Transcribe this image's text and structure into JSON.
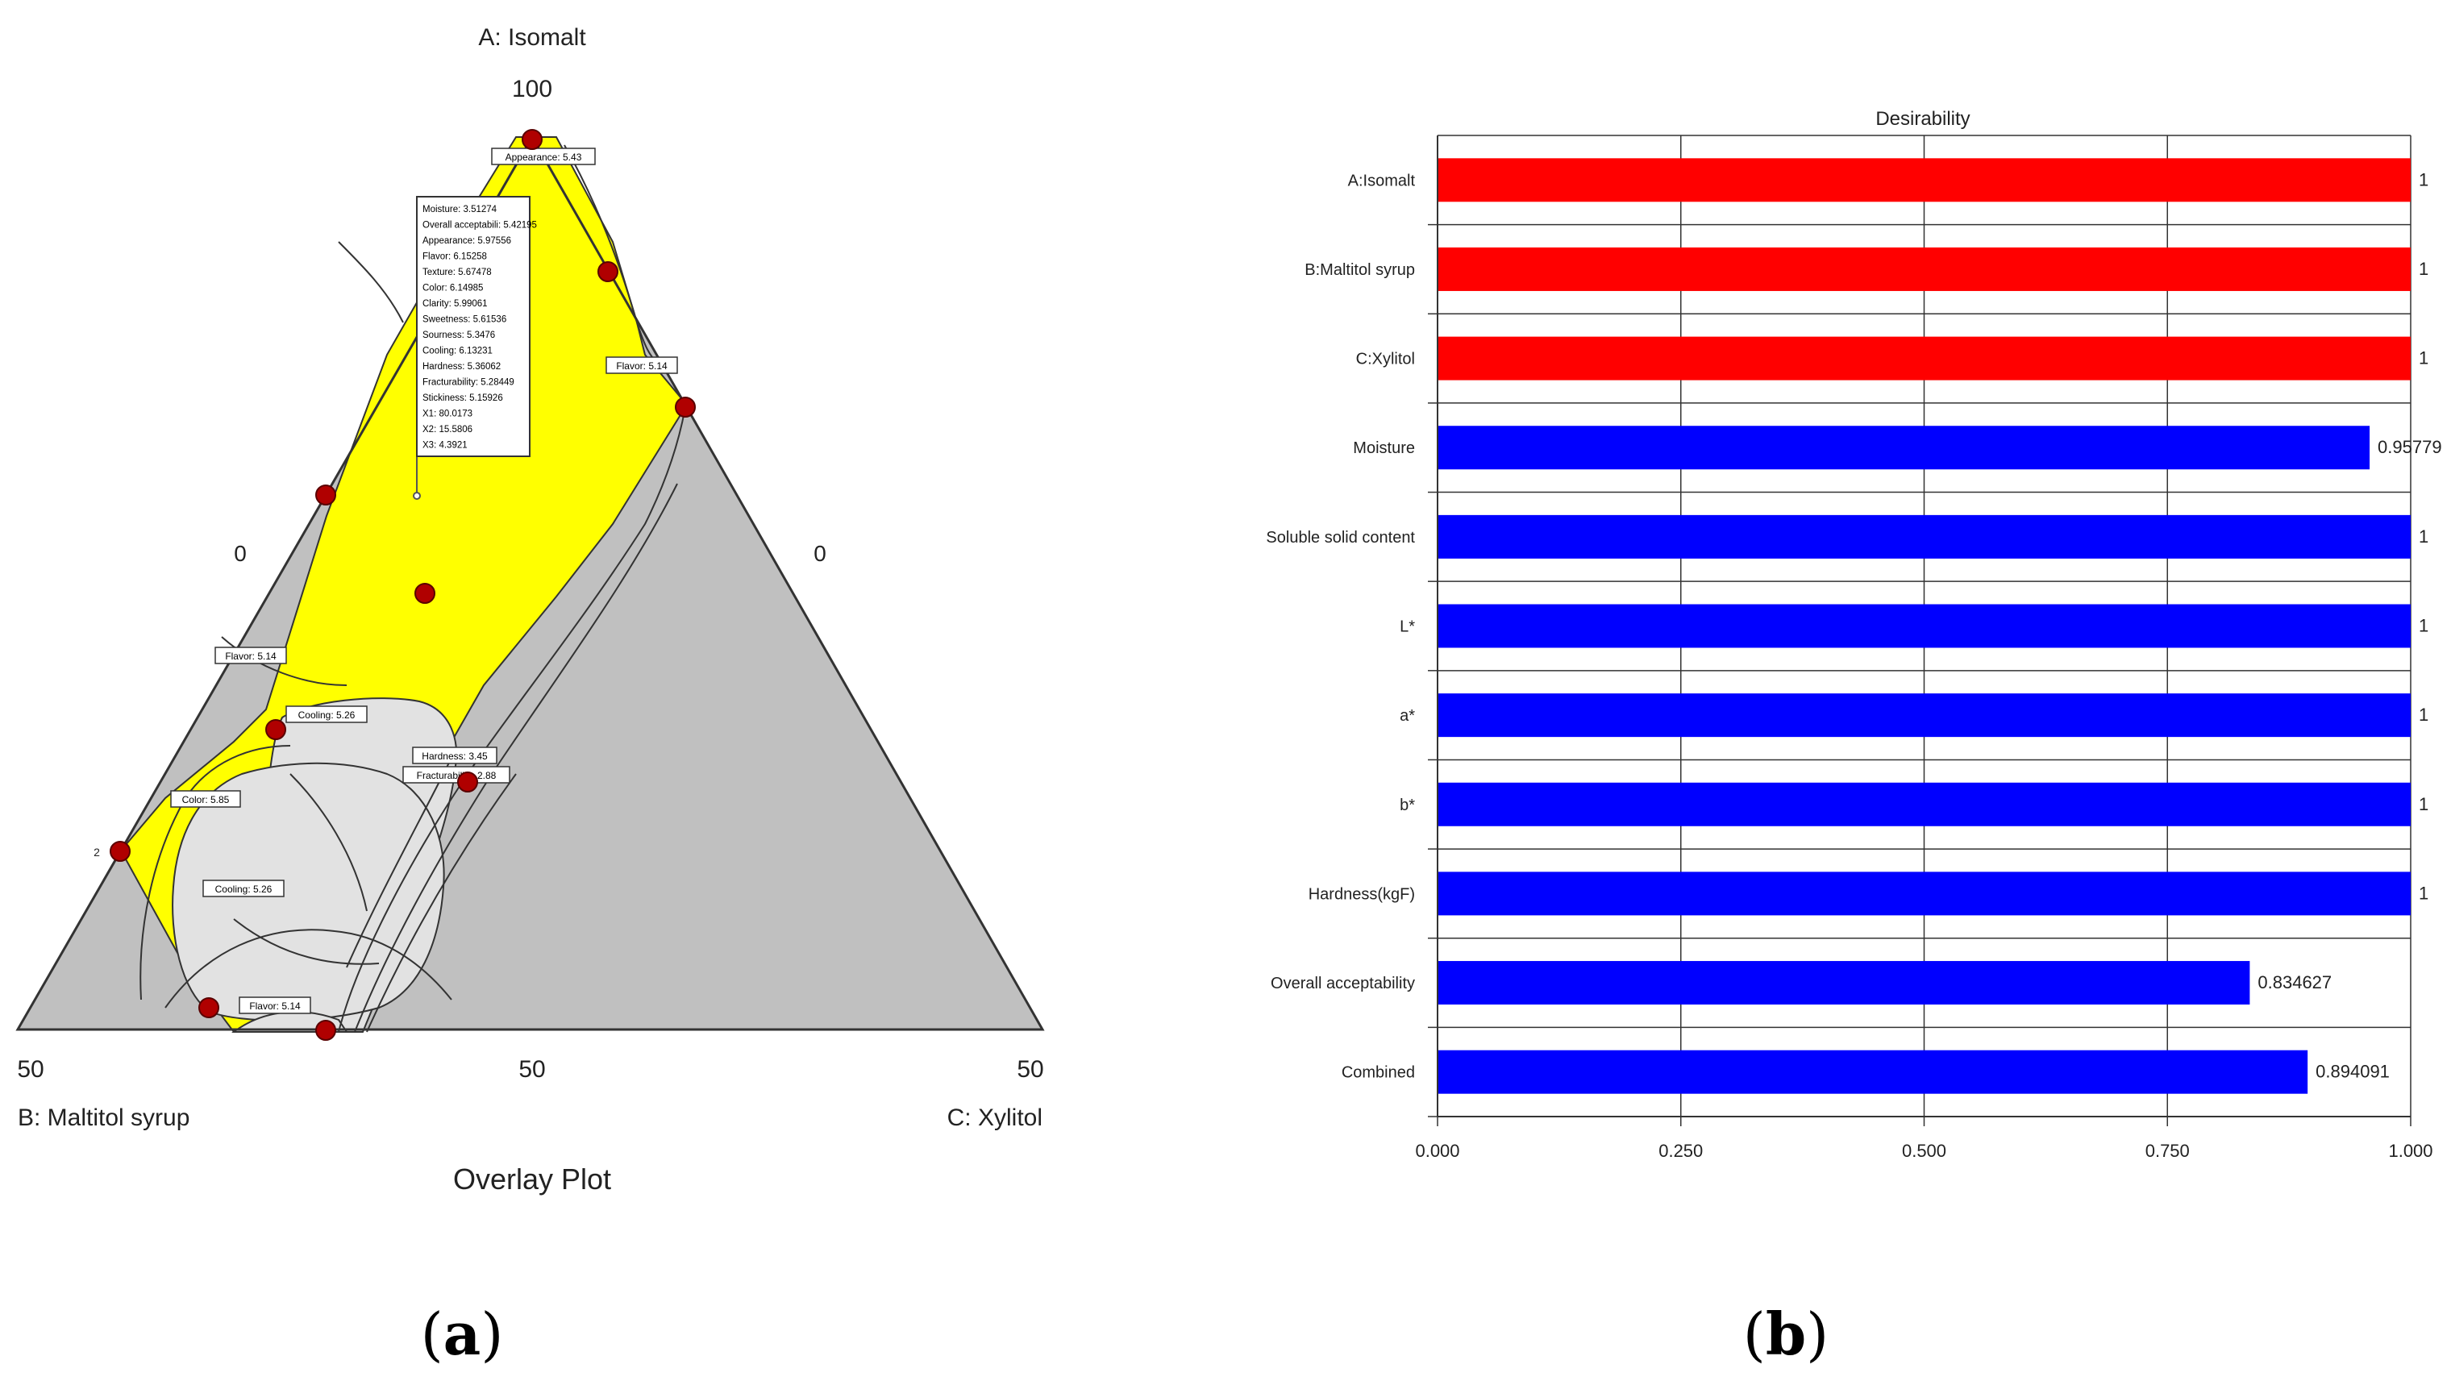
{
  "panels": {
    "a": {
      "letter": "(a)",
      "bold": "a"
    },
    "b": {
      "letter": "(b)",
      "bold": "b"
    }
  },
  "chart_data": [
    {
      "type": "ternary",
      "title": "Overlay Plot",
      "axes": {
        "A": {
          "label": "A: Isomalt",
          "max_label": "100",
          "min_label": "0"
        },
        "B": {
          "label": "B: Maltitol syrup",
          "max_label": "50",
          "min_label": "0"
        },
        "C": {
          "label": "C: Xylitol",
          "max_label": "50",
          "min_label": "0"
        },
        "mid_label": "50",
        "small_label": "2"
      },
      "colors": {
        "region": "#ffff00",
        "infeasible": "#c0c0c0",
        "point": "#b00000",
        "contour_fill": "#e2e2e2"
      },
      "design_points": 10,
      "contour_labels": [
        "Appearance: 5.43",
        "Flavor: 5.14",
        "Flavor: 5.14",
        "Cooling: 5.26",
        "Hardness: 3.45",
        "Fracturability: 2.88",
        "Color: 5.85",
        "Cooling: 5.26",
        "Flavor: 5.14"
      ],
      "flag_readout": [
        "Moisture: 3.51274",
        "Overall acceptabili: 5.42195",
        "Appearance: 5.97556",
        "Flavor: 6.15258",
        "Texture: 5.67478",
        "Color: 6.14985",
        "Clarity: 5.99061",
        "Sweetness: 5.61536",
        "Sourness: 5.3476",
        "Cooling: 6.13231",
        "Hardness: 5.36062",
        "Fracturability: 5.28449",
        "Stickiness: 5.15926",
        "X1: 80.0173",
        "X2: 15.5806",
        "X3: 4.3921"
      ]
    },
    {
      "type": "bar",
      "orientation": "horizontal",
      "title": "Desirability",
      "categories": [
        "A:Isomalt",
        "B:Maltitol syrup",
        "C:Xylitol",
        "Moisture",
        "Soluble solid content",
        "L*",
        "a*",
        "b*",
        "Hardness(kgF)",
        "Overall acceptability",
        "Combined"
      ],
      "values": [
        1,
        1,
        1,
        0.957794,
        1,
        1,
        1,
        1,
        1,
        0.834627,
        0.894091
      ],
      "value_labels": [
        "1",
        "1",
        "1",
        "0.95779",
        "1",
        "1",
        "1",
        "1",
        "1",
        "0.834627",
        "0.894091"
      ],
      "bar_colors": [
        "#ff0000",
        "#ff0000",
        "#ff0000",
        "#0000ff",
        "#0000ff",
        "#0000ff",
        "#0000ff",
        "#0000ff",
        "#0000ff",
        "#0000ff",
        "#0000ff"
      ],
      "xlim": [
        0,
        1
      ],
      "xticks": [
        0,
        0.25,
        0.5,
        0.75,
        1
      ],
      "xtick_labels": [
        "0.000",
        "0.250",
        "0.500",
        "0.750",
        "1.000"
      ],
      "grid": true
    }
  ]
}
